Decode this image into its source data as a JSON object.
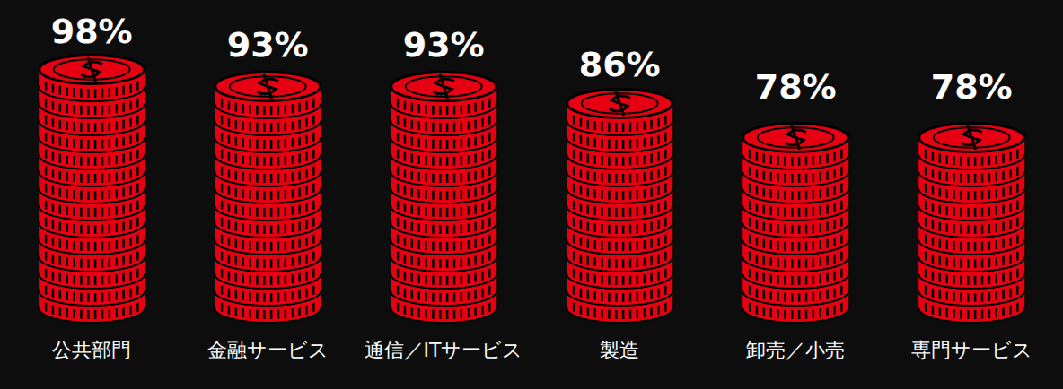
{
  "chart_data": {
    "type": "bar",
    "categories": [
      "公共部門",
      "金融サービス",
      "通信／ITサービス",
      "製造",
      "卸売／小売",
      "専門サービス"
    ],
    "values": [
      98,
      93,
      93,
      86,
      78,
      78
    ],
    "value_labels": [
      "98%",
      "93%",
      "93%",
      "86%",
      "78%",
      "78%"
    ],
    "color": "#e60012",
    "data_labels": true,
    "tick_labels": "x"
  }
}
